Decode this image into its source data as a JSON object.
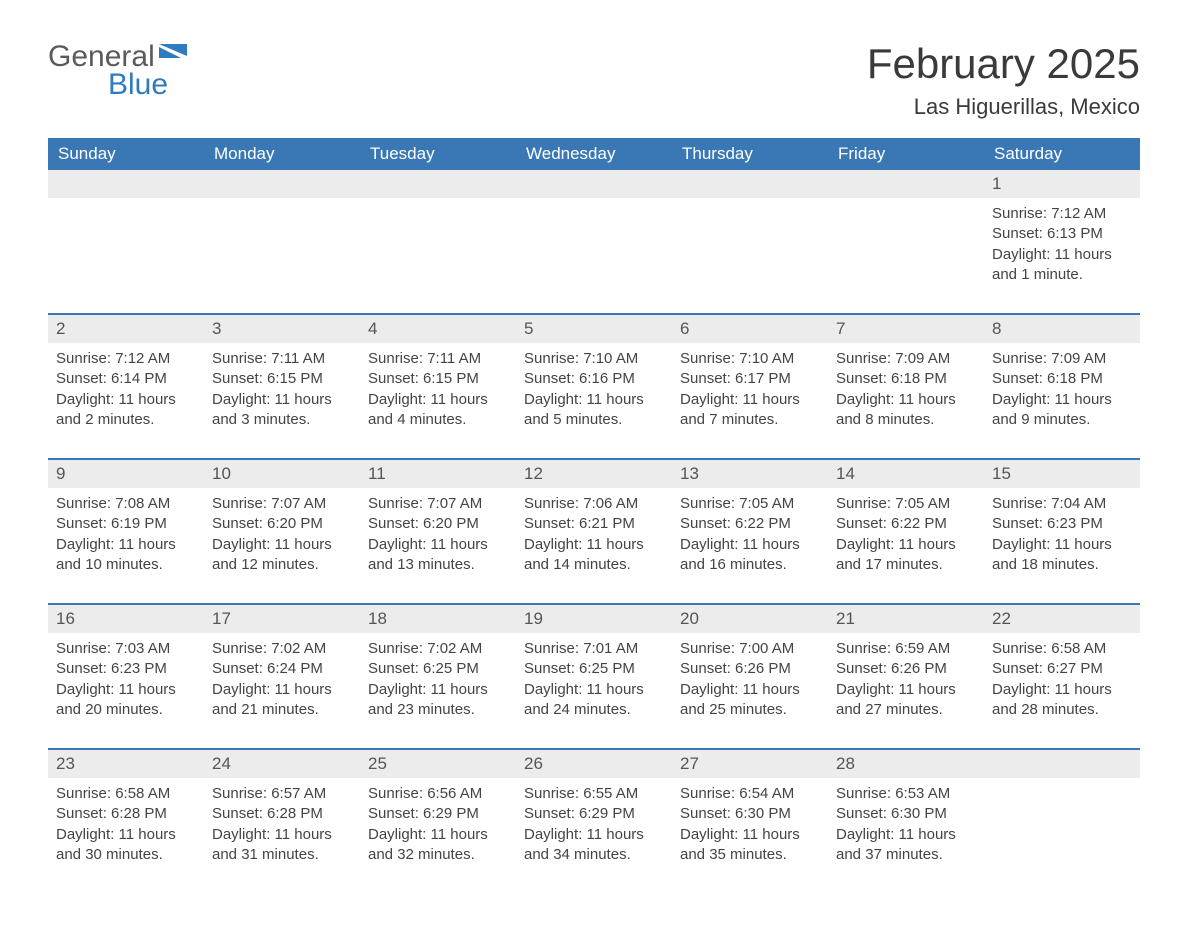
{
  "logo": {
    "text1": "General",
    "text2": "Blue"
  },
  "title": "February 2025",
  "location": "Las Higuerillas, Mexico",
  "colors": {
    "header_bg": "#3a78b5",
    "header_text": "#ffffff",
    "row_border": "#3a78b5",
    "daynum_bg": "#ececec",
    "body_text": "#444444",
    "logo_blue": "#2f7bbf",
    "logo_gray": "#5a5a5a",
    "page_bg": "#ffffff"
  },
  "typography": {
    "title_fontsize": 42,
    "location_fontsize": 22,
    "dayheader_fontsize": 17,
    "daynum_fontsize": 17,
    "detail_fontsize": 15,
    "font_family": "Arial"
  },
  "layout": {
    "columns": 7,
    "week_starts": "Sunday"
  },
  "day_headers": [
    "Sunday",
    "Monday",
    "Tuesday",
    "Wednesday",
    "Thursday",
    "Friday",
    "Saturday"
  ],
  "weeks": [
    [
      {},
      {},
      {},
      {},
      {},
      {},
      {
        "n": "1",
        "sunrise": "Sunrise: 7:12 AM",
        "sunset": "Sunset: 6:13 PM",
        "daylight": "Daylight: 11 hours and 1 minute."
      }
    ],
    [
      {
        "n": "2",
        "sunrise": "Sunrise: 7:12 AM",
        "sunset": "Sunset: 6:14 PM",
        "daylight": "Daylight: 11 hours and 2 minutes."
      },
      {
        "n": "3",
        "sunrise": "Sunrise: 7:11 AM",
        "sunset": "Sunset: 6:15 PM",
        "daylight": "Daylight: 11 hours and 3 minutes."
      },
      {
        "n": "4",
        "sunrise": "Sunrise: 7:11 AM",
        "sunset": "Sunset: 6:15 PM",
        "daylight": "Daylight: 11 hours and 4 minutes."
      },
      {
        "n": "5",
        "sunrise": "Sunrise: 7:10 AM",
        "sunset": "Sunset: 6:16 PM",
        "daylight": "Daylight: 11 hours and 5 minutes."
      },
      {
        "n": "6",
        "sunrise": "Sunrise: 7:10 AM",
        "sunset": "Sunset: 6:17 PM",
        "daylight": "Daylight: 11 hours and 7 minutes."
      },
      {
        "n": "7",
        "sunrise": "Sunrise: 7:09 AM",
        "sunset": "Sunset: 6:18 PM",
        "daylight": "Daylight: 11 hours and 8 minutes."
      },
      {
        "n": "8",
        "sunrise": "Sunrise: 7:09 AM",
        "sunset": "Sunset: 6:18 PM",
        "daylight": "Daylight: 11 hours and 9 minutes."
      }
    ],
    [
      {
        "n": "9",
        "sunrise": "Sunrise: 7:08 AM",
        "sunset": "Sunset: 6:19 PM",
        "daylight": "Daylight: 11 hours and 10 minutes."
      },
      {
        "n": "10",
        "sunrise": "Sunrise: 7:07 AM",
        "sunset": "Sunset: 6:20 PM",
        "daylight": "Daylight: 11 hours and 12 minutes."
      },
      {
        "n": "11",
        "sunrise": "Sunrise: 7:07 AM",
        "sunset": "Sunset: 6:20 PM",
        "daylight": "Daylight: 11 hours and 13 minutes."
      },
      {
        "n": "12",
        "sunrise": "Sunrise: 7:06 AM",
        "sunset": "Sunset: 6:21 PM",
        "daylight": "Daylight: 11 hours and 14 minutes."
      },
      {
        "n": "13",
        "sunrise": "Sunrise: 7:05 AM",
        "sunset": "Sunset: 6:22 PM",
        "daylight": "Daylight: 11 hours and 16 minutes."
      },
      {
        "n": "14",
        "sunrise": "Sunrise: 7:05 AM",
        "sunset": "Sunset: 6:22 PM",
        "daylight": "Daylight: 11 hours and 17 minutes."
      },
      {
        "n": "15",
        "sunrise": "Sunrise: 7:04 AM",
        "sunset": "Sunset: 6:23 PM",
        "daylight": "Daylight: 11 hours and 18 minutes."
      }
    ],
    [
      {
        "n": "16",
        "sunrise": "Sunrise: 7:03 AM",
        "sunset": "Sunset: 6:23 PM",
        "daylight": "Daylight: 11 hours and 20 minutes."
      },
      {
        "n": "17",
        "sunrise": "Sunrise: 7:02 AM",
        "sunset": "Sunset: 6:24 PM",
        "daylight": "Daylight: 11 hours and 21 minutes."
      },
      {
        "n": "18",
        "sunrise": "Sunrise: 7:02 AM",
        "sunset": "Sunset: 6:25 PM",
        "daylight": "Daylight: 11 hours and 23 minutes."
      },
      {
        "n": "19",
        "sunrise": "Sunrise: 7:01 AM",
        "sunset": "Sunset: 6:25 PM",
        "daylight": "Daylight: 11 hours and 24 minutes."
      },
      {
        "n": "20",
        "sunrise": "Sunrise: 7:00 AM",
        "sunset": "Sunset: 6:26 PM",
        "daylight": "Daylight: 11 hours and 25 minutes."
      },
      {
        "n": "21",
        "sunrise": "Sunrise: 6:59 AM",
        "sunset": "Sunset: 6:26 PM",
        "daylight": "Daylight: 11 hours and 27 minutes."
      },
      {
        "n": "22",
        "sunrise": "Sunrise: 6:58 AM",
        "sunset": "Sunset: 6:27 PM",
        "daylight": "Daylight: 11 hours and 28 minutes."
      }
    ],
    [
      {
        "n": "23",
        "sunrise": "Sunrise: 6:58 AM",
        "sunset": "Sunset: 6:28 PM",
        "daylight": "Daylight: 11 hours and 30 minutes."
      },
      {
        "n": "24",
        "sunrise": "Sunrise: 6:57 AM",
        "sunset": "Sunset: 6:28 PM",
        "daylight": "Daylight: 11 hours and 31 minutes."
      },
      {
        "n": "25",
        "sunrise": "Sunrise: 6:56 AM",
        "sunset": "Sunset: 6:29 PM",
        "daylight": "Daylight: 11 hours and 32 minutes."
      },
      {
        "n": "26",
        "sunrise": "Sunrise: 6:55 AM",
        "sunset": "Sunset: 6:29 PM",
        "daylight": "Daylight: 11 hours and 34 minutes."
      },
      {
        "n": "27",
        "sunrise": "Sunrise: 6:54 AM",
        "sunset": "Sunset: 6:30 PM",
        "daylight": "Daylight: 11 hours and 35 minutes."
      },
      {
        "n": "28",
        "sunrise": "Sunrise: 6:53 AM",
        "sunset": "Sunset: 6:30 PM",
        "daylight": "Daylight: 11 hours and 37 minutes."
      },
      {}
    ]
  ]
}
